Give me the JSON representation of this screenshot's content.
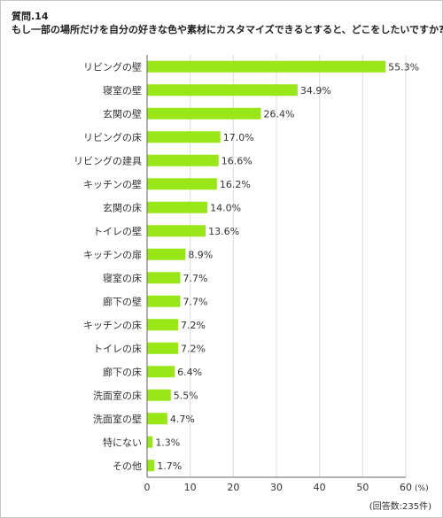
{
  "header": {
    "question_number": "質問.14",
    "question_text": "もし一部の場所だけを自分の好きな色や素材にカスタマイズできるとすると、どこをしたいですか?"
  },
  "footnote": "(回答数:235件)",
  "colors": {
    "bar": "#99e619",
    "grid": "#dcdcdc",
    "axis": "#666666",
    "text": "#333333"
  },
  "chart_data": {
    "type": "bar",
    "orientation": "horizontal",
    "categories": [
      "リビングの壁",
      "寝室の壁",
      "玄関の壁",
      "リビングの床",
      "リビングの建具",
      "キッチンの壁",
      "玄関の床",
      "トイレの壁",
      "キッチンの扉",
      "寝室の床",
      "廊下の壁",
      "キッチンの床",
      "トイレの床",
      "廊下の床",
      "洗面室の床",
      "洗面室の壁",
      "特にない",
      "その他"
    ],
    "values": [
      55.3,
      34.9,
      26.4,
      17.0,
      16.6,
      16.2,
      14.0,
      13.6,
      8.9,
      7.7,
      7.7,
      7.2,
      7.2,
      6.4,
      5.5,
      4.7,
      1.3,
      1.7
    ],
    "value_labels": [
      "55.3%",
      "34.9%",
      "26.4%",
      "17.0%",
      "16.6%",
      "16.2%",
      "14.0%",
      "13.6%",
      "8.9%",
      "7.7%",
      "7.7%",
      "7.2%",
      "7.2%",
      "6.4%",
      "5.5%",
      "4.7%",
      "1.3%",
      "1.7%"
    ],
    "xticks": [
      0,
      10,
      20,
      30,
      40,
      50,
      60
    ],
    "xtick_labels": [
      "0",
      "10",
      "20",
      "30",
      "40",
      "50",
      "60"
    ],
    "xunit": "(%)",
    "xlim": [
      0,
      60
    ],
    "grid": true
  }
}
